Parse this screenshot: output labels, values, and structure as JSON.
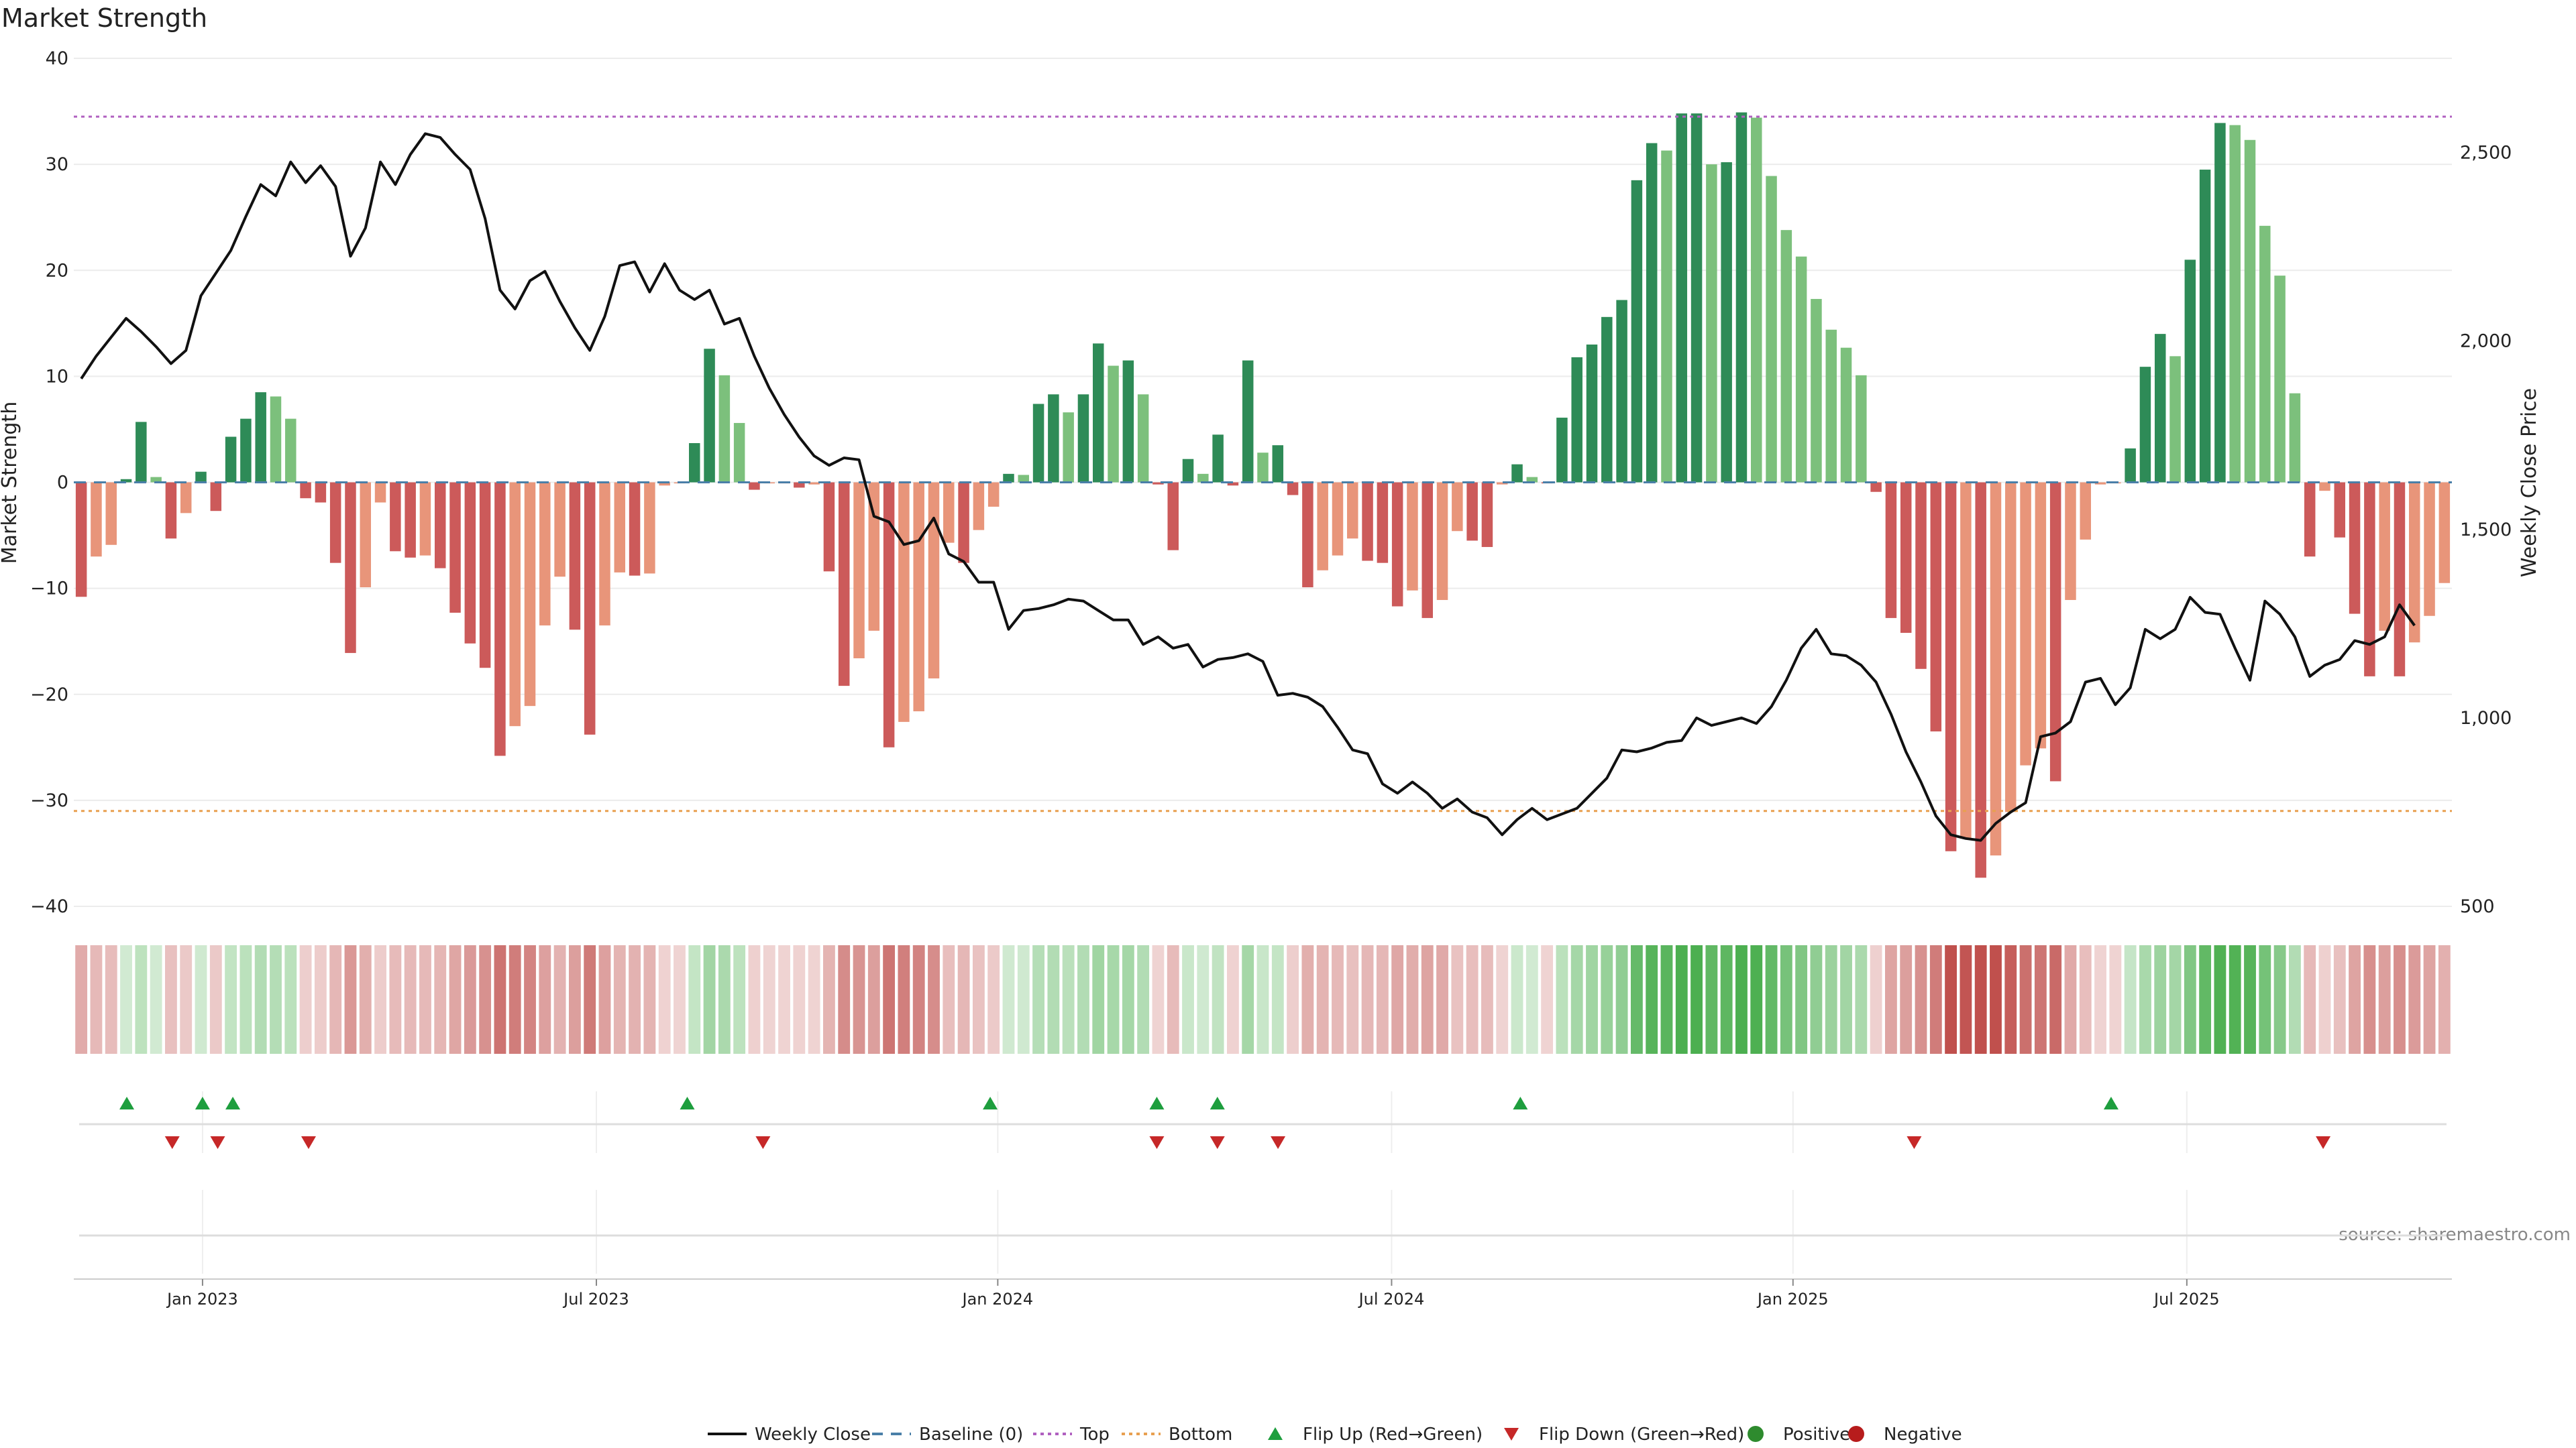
{
  "chart_data": {
    "type": "bar",
    "title": "Market Strength",
    "ylabel": "Market Strength",
    "y2label": "Weekly Close Price",
    "ylim": [
      -40,
      40
    ],
    "y2lim": [
      500,
      2750
    ],
    "yticks": [
      40,
      30,
      20,
      10,
      0,
      -10,
      -20,
      -30,
      -40
    ],
    "y2ticks": [
      2500,
      2000,
      1500,
      1000,
      500
    ],
    "y2tick_labels": [
      "2,500",
      "2,000",
      "1,500",
      "1,000",
      "500"
    ],
    "top_line": 34.5,
    "bottom_line": -31,
    "x_range": [
      0,
      157
    ],
    "x_ticks": [
      {
        "label": "Jan 2023",
        "week": 8.5
      },
      {
        "label": "Jul 2023",
        "week": 34.5
      },
      {
        "label": "Jan 2024",
        "week": 61
      },
      {
        "label": "Jul 2024",
        "week": 87
      },
      {
        "label": "Jan 2025",
        "week": 113.5
      },
      {
        "label": "Jul 2025",
        "week": 139.5
      }
    ],
    "strength": [
      -10.8,
      -7,
      -5.9,
      0.3,
      5.7,
      0.5,
      -5.3,
      -2.9,
      1,
      -2.7,
      4.3,
      6,
      8.5,
      8.1,
      6,
      -1.5,
      -1.9,
      -7.6,
      -16.1,
      -9.9,
      -1.9,
      -6.5,
      -7.1,
      -6.9,
      -8.1,
      -12.3,
      -15.2,
      -17.5,
      -25.8,
      -23,
      -21.1,
      -13.5,
      -8.9,
      -13.9,
      -23.8,
      -13.5,
      -8.5,
      -8.8,
      -8.6,
      -0.3,
      -0.1,
      3.7,
      12.6,
      10.1,
      5.6,
      -0.7,
      -0.1,
      -0.1,
      -0.5,
      -0.2,
      -8.4,
      -19.2,
      -16.6,
      -14,
      -25,
      -22.6,
      -21.6,
      -18.5,
      -5.7,
      -7.6,
      -4.5,
      -2.3,
      0.8,
      0.7,
      7.4,
      8.3,
      6.6,
      8.3,
      13.1,
      11,
      11.5,
      8.3,
      -0.2,
      -6.4,
      2.2,
      0.8,
      4.5,
      -0.3,
      11.5,
      2.8,
      3.5,
      -1.2,
      -9.9,
      -8.3,
      -6.9,
      -5.3,
      -7.4,
      -7.6,
      -11.7,
      -10.2,
      -12.8,
      -11.1,
      -4.6,
      -5.5,
      -6.1,
      -0.2,
      1.7,
      0.5,
      -0.1,
      6.1,
      11.8,
      13,
      15.6,
      17.2,
      28.5,
      32,
      31.3,
      34.8,
      34.8,
      30,
      30.2,
      34.9,
      34.4,
      28.9,
      23.8,
      21.3,
      17.3,
      14.4,
      12.7,
      10.1,
      -0.9,
      -12.8,
      -14.2,
      -17.6,
      -23.5,
      -34.8,
      -33.6,
      -37.3,
      -35.2,
      -31.1,
      -26.7,
      -25.1,
      -28.2,
      -11.1,
      -5.4,
      -0.2,
      -0.1,
      3.2,
      10.9,
      14,
      11.9,
      21,
      29.5,
      33.9,
      33.7,
      32.3,
      24.2,
      19.5,
      8.4,
      -7,
      -0.8,
      -5.2,
      -12.4,
      -18.3,
      -14,
      -18.3,
      -15.1,
      -12.6,
      -9.5
    ],
    "close_price": [
      1900,
      1960,
      2010,
      2060,
      2025,
      1985,
      1940,
      1975,
      2120,
      2180,
      2240,
      2330,
      2415,
      2385,
      2475,
      2420,
      2465,
      2410,
      2225,
      2300,
      2475,
      2415,
      2495,
      2550,
      2540,
      2495,
      2455,
      2325,
      2135,
      2085,
      2160,
      2185,
      2105,
      2035,
      1975,
      2065,
      2200,
      2210,
      2130,
      2205,
      2135,
      2110,
      2135,
      2045,
      2060,
      1960,
      1875,
      1805,
      1745,
      1695,
      1670,
      1690,
      1685,
      1535,
      1520,
      1460,
      1470,
      1530,
      1435,
      1415,
      1360,
      1360,
      1235,
      1285,
      1290,
      1300,
      1315,
      1310,
      1285,
      1260,
      1260,
      1195,
      1215,
      1185,
      1195,
      1135,
      1155,
      1160,
      1170,
      1150,
      1060,
      1065,
      1055,
      1030,
      975,
      915,
      905,
      825,
      800,
      830,
      800,
      760,
      785,
      750,
      735,
      690,
      730,
      760,
      730,
      745,
      760,
      800,
      840,
      915,
      910,
      920,
      935,
      940,
      1000,
      980,
      990,
      1000,
      985,
      1030,
      1100,
      1185,
      1235,
      1170,
      1165,
      1140,
      1095,
      1010,
      910,
      830,
      740,
      690,
      680,
      675,
      720,
      750,
      775,
      950,
      960,
      990,
      1095,
      1105,
      1035,
      1080,
      1235,
      1210,
      1235,
      1320,
      1280,
      1275,
      1185,
      1100,
      1310,
      1275,
      1215,
      1110,
      1140,
      1155,
      1205,
      1195,
      1215,
      1300,
      1245
    ],
    "series": [
      {
        "name": "Weekly Close",
        "color": "#111111"
      },
      {
        "name": "Baseline (0)",
        "color": "#4a7fa8"
      },
      {
        "name": "Top",
        "color": "#b060c0"
      },
      {
        "name": "Bottom",
        "color": "#e8a050"
      },
      {
        "name": "Flip Up (Red→Green)",
        "color": "#1e9e3e"
      },
      {
        "name": "Flip Down (Green→Red)",
        "color": "#c62828"
      },
      {
        "name": "Positive",
        "color": "#2e8b2e"
      },
      {
        "name": "Negative",
        "color": "#b71c1c"
      }
    ],
    "flip_up_weeks": [
      3.5,
      8.5,
      10.5,
      40.5,
      60.5,
      71.5,
      75.5,
      95.5,
      134.5
    ],
    "flip_down_weeks": [
      6.5,
      9.5,
      15.5,
      45.5,
      71.5,
      75.5,
      79.5,
      121.5,
      148.5
    ],
    "source": "source: sharemaestro.com",
    "colors": {
      "pos_dark": "#2e8b57",
      "pos_light": "#7cc07c",
      "neg_dark": "#cc5a5a",
      "neg_light": "#e8957a",
      "grid": "#ececec",
      "axis": "#cccccc"
    }
  }
}
